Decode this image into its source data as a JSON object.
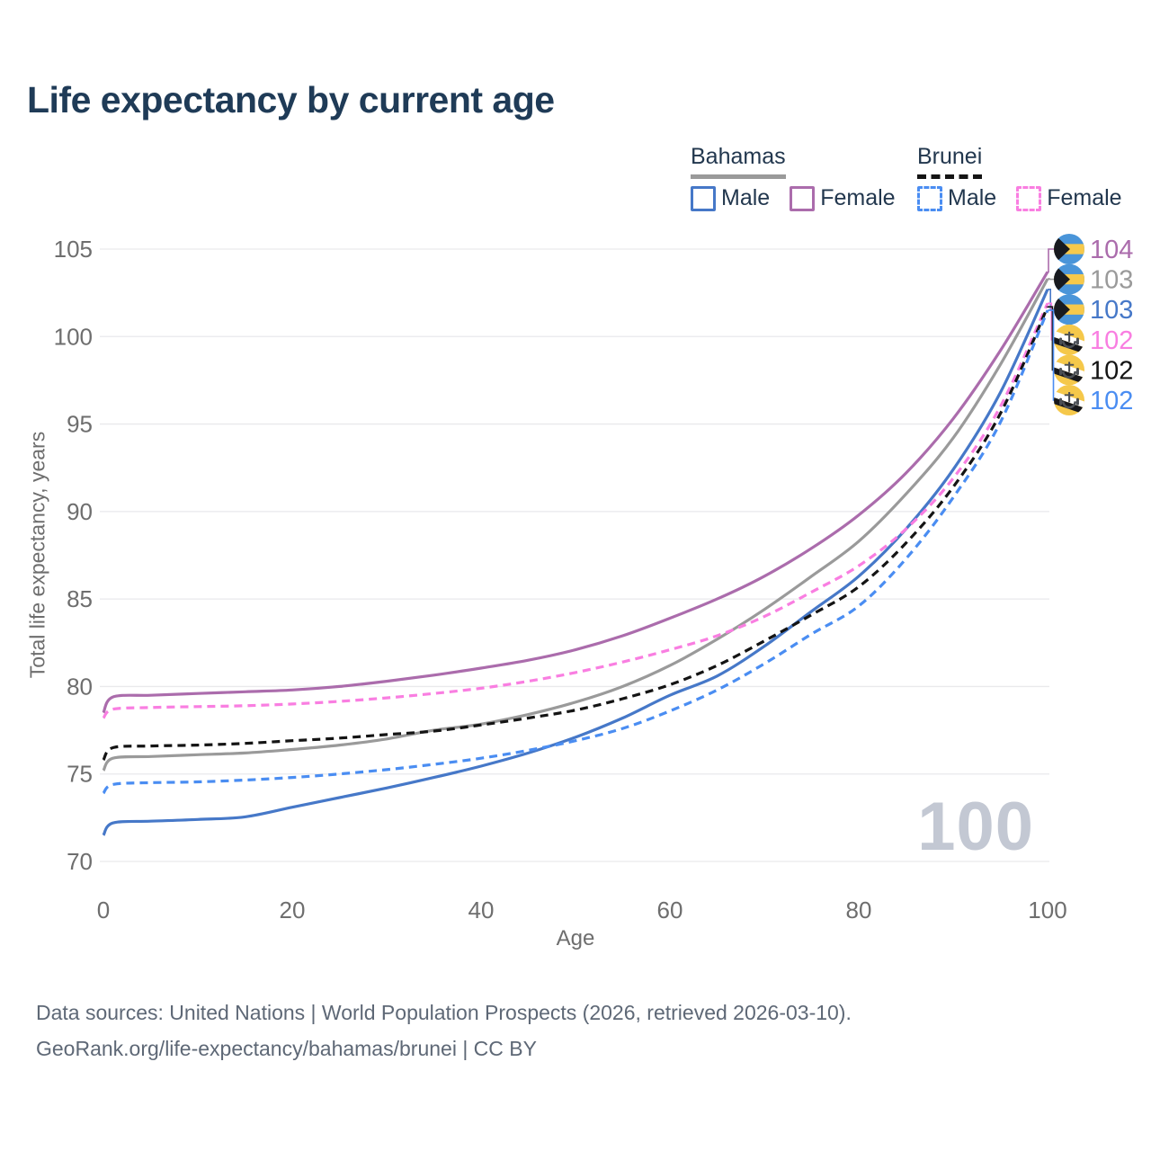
{
  "title": "Life expectancy by current age",
  "legend": {
    "bahamas": {
      "label": "Bahamas",
      "male": "Male",
      "female": "Female"
    },
    "brunei": {
      "label": "Brunei",
      "male": "Male",
      "female": "Female"
    }
  },
  "chart_data": {
    "type": "line",
    "title": "Life expectancy by current age",
    "xlabel": "Age",
    "ylabel": "Total life expectancy, years",
    "xlim": [
      0,
      100
    ],
    "ylim": [
      70,
      105
    ],
    "x_ticks": [
      0,
      20,
      40,
      60,
      80,
      100
    ],
    "y_ticks": [
      70,
      75,
      80,
      85,
      90,
      95,
      100,
      105
    ],
    "grid": "horizontal",
    "legend_position": "top-right",
    "watermark": "100",
    "ages": [
      0,
      1,
      5,
      10,
      15,
      20,
      25,
      30,
      35,
      40,
      45,
      50,
      55,
      60,
      65,
      70,
      75,
      80,
      85,
      90,
      95,
      100
    ],
    "series": [
      {
        "key": "bahamas_female",
        "name": "Bahamas Female",
        "country": "Bahamas",
        "sex": "Female",
        "flag": "bahamas",
        "color": "#ab6cac",
        "dash": false,
        "end_label": "104",
        "values": [
          78.5,
          79.4,
          79.5,
          79.6,
          79.7,
          79.8,
          80.0,
          80.3,
          80.65,
          81.05,
          81.5,
          82.1,
          82.9,
          83.9,
          85.0,
          86.3,
          87.9,
          89.8,
          92.2,
          95.3,
          99.2,
          103.7
        ]
      },
      {
        "key": "bahamas_total",
        "name": "Bahamas Both sexes",
        "country": "Bahamas",
        "sex": "Both",
        "flag": "bahamas",
        "color": "#9a9a9a",
        "dash": false,
        "end_label": "103",
        "values": [
          75.2,
          75.9,
          76.0,
          76.1,
          76.2,
          76.4,
          76.65,
          77.0,
          77.5,
          77.85,
          78.4,
          79.1,
          80.0,
          81.2,
          82.7,
          84.4,
          86.3,
          88.3,
          91.0,
          94.2,
          98.4,
          103.3
        ]
      },
      {
        "key": "bahamas_male",
        "name": "Bahamas Male",
        "country": "Bahamas",
        "sex": "Male",
        "flag": "bahamas",
        "color": "#4678c8",
        "dash": false,
        "end_label": "103",
        "values": [
          71.5,
          72.2,
          72.3,
          72.4,
          72.55,
          73.1,
          73.65,
          74.2,
          74.8,
          75.45,
          76.2,
          77.1,
          78.2,
          79.5,
          80.6,
          82.3,
          84.3,
          86.3,
          89.0,
          92.4,
          96.8,
          102.7
        ]
      },
      {
        "key": "brunei_female",
        "name": "Brunei Female",
        "country": "Brunei",
        "sex": "Female",
        "flag": "brunei",
        "color": "#f97ee1",
        "dash": true,
        "end_label": "102",
        "values": [
          78.2,
          78.7,
          78.8,
          78.85,
          78.9,
          79.0,
          79.15,
          79.35,
          79.6,
          79.9,
          80.3,
          80.8,
          81.4,
          82.1,
          82.9,
          84.0,
          85.4,
          86.9,
          89.0,
          91.9,
          96.0,
          101.9
        ]
      },
      {
        "key": "brunei_total",
        "name": "Brunei Both sexes",
        "country": "Brunei",
        "sex": "Both",
        "flag": "brunei",
        "color": "#141414",
        "dash": true,
        "end_label": "102",
        "values": [
          75.8,
          76.5,
          76.6,
          76.65,
          76.75,
          76.9,
          77.05,
          77.25,
          77.45,
          77.8,
          78.2,
          78.65,
          79.3,
          80.1,
          81.2,
          82.6,
          84.1,
          85.7,
          88.2,
          91.4,
          95.6,
          101.7
        ]
      },
      {
        "key": "brunei_male",
        "name": "Brunei Male",
        "country": "Brunei",
        "sex": "Male",
        "flag": "brunei",
        "color": "#4a8df2",
        "dash": true,
        "end_label": "102",
        "values": [
          73.9,
          74.4,
          74.5,
          74.55,
          74.65,
          74.8,
          75.0,
          75.25,
          75.55,
          75.9,
          76.35,
          76.9,
          77.6,
          78.6,
          79.8,
          81.3,
          83.0,
          84.6,
          87.3,
          90.8,
          95.1,
          101.5
        ]
      }
    ]
  },
  "footer": {
    "line1": "Data sources: United Nations | World Population Prospects (2026, retrieved 2026-03-10).",
    "line2": "GeoRank.org/life-expectancy/bahamas/brunei | CC BY"
  }
}
